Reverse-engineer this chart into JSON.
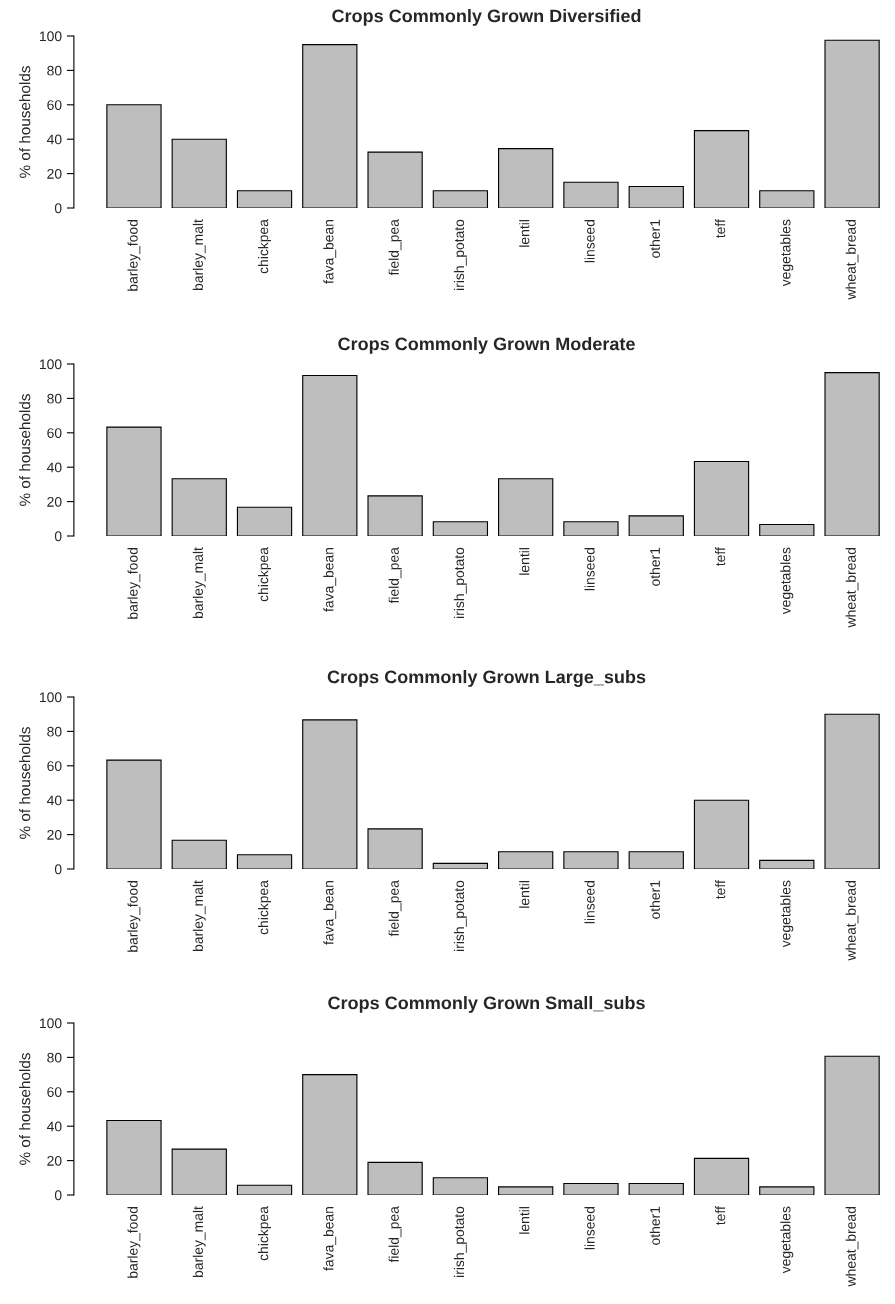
{
  "chart_data": [
    {
      "type": "bar",
      "title": "Crops Commonly Grown Diversified",
      "ylabel": "% of households",
      "color": "#bebebe",
      "ylim": [
        0,
        100
      ],
      "yticks": [
        0,
        20,
        40,
        60,
        80,
        100
      ],
      "categories": [
        "barley_food",
        "barley_malt",
        "chickpea",
        "fava_bean",
        "field_pea",
        "irish_potato",
        "lentil",
        "linseed",
        "other1",
        "teff",
        "vegetables",
        "wheat_bread"
      ],
      "values": [
        60,
        40,
        10,
        95,
        32.5,
        10,
        34.5,
        15,
        12.5,
        45,
        10,
        97.5
      ]
    },
    {
      "type": "bar",
      "title": "Crops Commonly Grown Moderate",
      "ylabel": "% of households",
      "color": "#bebebe",
      "ylim": [
        0,
        100
      ],
      "yticks": [
        0,
        20,
        40,
        60,
        80,
        100
      ],
      "categories": [
        "barley_food",
        "barley_malt",
        "chickpea",
        "fava_bean",
        "field_pea",
        "irish_potato",
        "lentil",
        "linseed",
        "other1",
        "teff",
        "vegetables",
        "wheat_bread"
      ],
      "values": [
        63.3,
        33.3,
        16.7,
        93.3,
        23.3,
        8.3,
        33.3,
        8.3,
        11.7,
        43.3,
        6.7,
        95
      ]
    },
    {
      "type": "bar",
      "title": "Crops Commonly Grown Large_subs",
      "ylabel": "% of households",
      "color": "#bebebe",
      "ylim": [
        0,
        100
      ],
      "yticks": [
        0,
        20,
        40,
        60,
        80,
        100
      ],
      "categories": [
        "barley_food",
        "barley_malt",
        "chickpea",
        "fava_bean",
        "field_pea",
        "irish_potato",
        "lentil",
        "linseed",
        "other1",
        "teff",
        "vegetables",
        "wheat_bread"
      ],
      "values": [
        63.3,
        16.7,
        8.3,
        86.7,
        23.3,
        3.3,
        10,
        10,
        10,
        40,
        5,
        90
      ]
    },
    {
      "type": "bar",
      "title": "Crops Commonly Grown Small_subs",
      "ylabel": "% of households",
      "color": "#bebebe",
      "ylim": [
        0,
        100
      ],
      "yticks": [
        0,
        20,
        40,
        60,
        80,
        100
      ],
      "categories": [
        "barley_food",
        "barley_malt",
        "chickpea",
        "fava_bean",
        "field_pea",
        "irish_potato",
        "lentil",
        "linseed",
        "other1",
        "teff",
        "vegetables",
        "wheat_bread"
      ],
      "values": [
        43.3,
        26.7,
        5.7,
        70,
        19,
        10,
        4.7,
        6.7,
        6.7,
        21.3,
        4.7,
        80.7
      ]
    }
  ]
}
